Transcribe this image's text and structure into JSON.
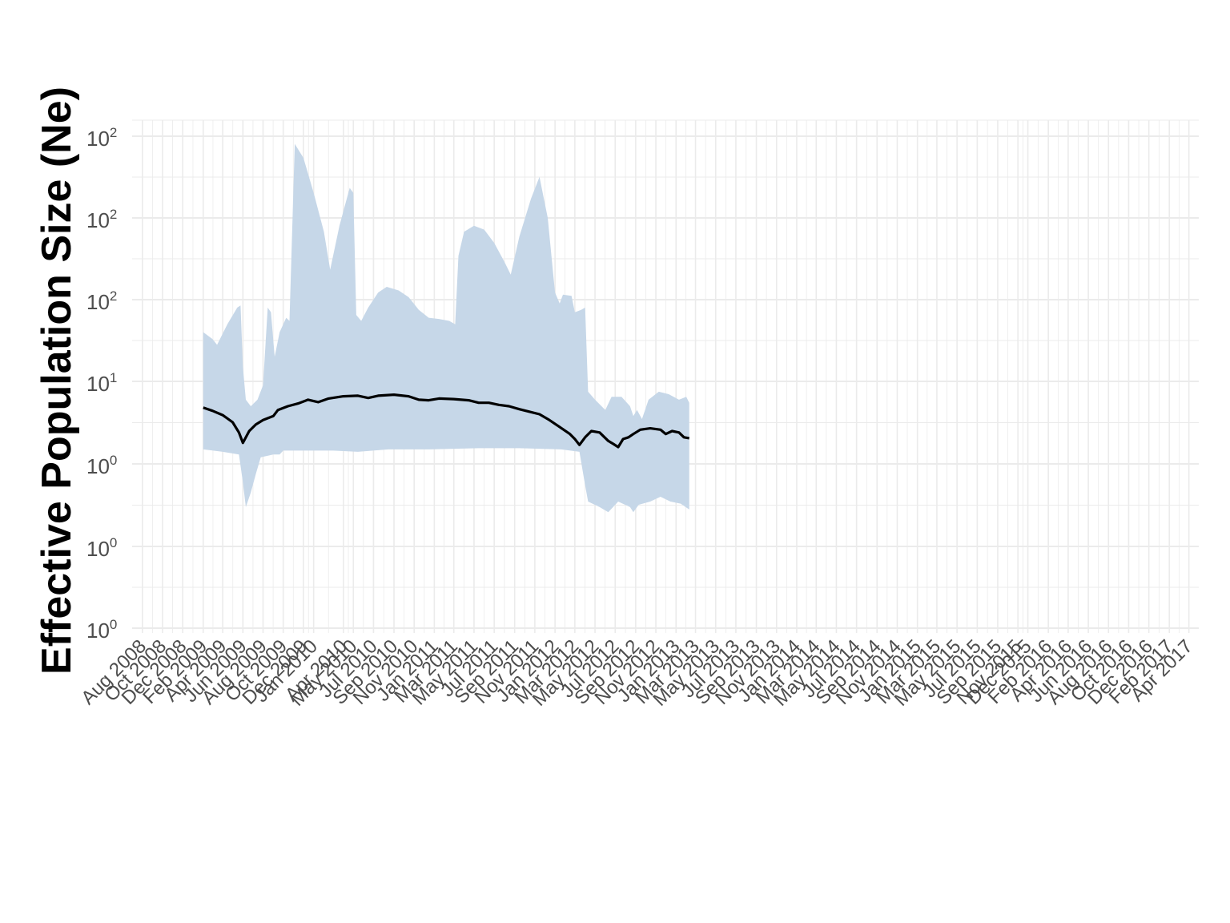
{
  "chart_data": {
    "type": "line",
    "ylabel": "Effective Population Size (Ne)",
    "xlabel": "",
    "y_scale": "log10",
    "y_ticks": [
      {
        "base": "10",
        "exp": "2"
      },
      {
        "base": "10",
        "exp": "2"
      },
      {
        "base": "10",
        "exp": "2"
      },
      {
        "base": "10",
        "exp": "1"
      },
      {
        "base": "10",
        "exp": "0"
      },
      {
        "base": "10",
        "exp": "0"
      },
      {
        "base": "10",
        "exp": "0"
      }
    ],
    "x_ticks": [
      "Aug 2008",
      "Oct 2008",
      "Dec 2008",
      "Feb 2009",
      "Apr 2009",
      "Jun 2009",
      "Aug 2009",
      "Oct 2009",
      "Dec 2009",
      "Jan 2010",
      "Apr 2010",
      "May 2010",
      "Jul 2010",
      "Sep 2010",
      "Nov 2010",
      "Jan 2011",
      "Mar 2011",
      "May 2011",
      "Jul 2011",
      "Sep 2011",
      "Nov 2011",
      "Jan 2012",
      "Mar 2012",
      "May 2012",
      "Jul 2012",
      "Sep 2012",
      "Nov 2012",
      "Jan 2013",
      "Mar 2013",
      "May 2013",
      "Jul 2013",
      "Sep 2013",
      "Nov 2013",
      "Jan 2014",
      "Mar 2014",
      "May 2014",
      "Jul 2014",
      "Sep 2014",
      "Nov 2014",
      "Jan 2015",
      "Mar 2015",
      "May 2015",
      "Jul 2015",
      "Sep 2015",
      "Nov 2015",
      "Dec 2015",
      "Feb 2016",
      "Apr 2016",
      "Jun 2016",
      "Aug 2016",
      "Oct 2016",
      "Dec 2016",
      "Feb 2017",
      "Apr 2017"
    ],
    "x_range": [
      "Jul 2008",
      "May 2017"
    ],
    "series": [
      {
        "kind": "median_line",
        "color": "#000000",
        "points": [
          [
            "2009-02-01",
            4.8
          ],
          [
            "2009-03-01",
            4.4
          ],
          [
            "2009-04-01",
            3.9
          ],
          [
            "2009-05-01",
            3.2
          ],
          [
            "2009-05-20",
            2.4
          ],
          [
            "2009-06-01",
            1.8
          ],
          [
            "2009-06-20",
            2.5
          ],
          [
            "2009-07-10",
            3.0
          ],
          [
            "2009-08-01",
            3.4
          ],
          [
            "2009-09-01",
            3.8
          ],
          [
            "2009-09-15",
            4.5
          ],
          [
            "2009-10-15",
            5.0
          ],
          [
            "2009-11-15",
            5.4
          ],
          [
            "2009-12-15",
            6.0
          ],
          [
            "2010-01-15",
            5.6
          ],
          [
            "2010-02-15",
            6.2
          ],
          [
            "2010-04-01",
            6.6
          ],
          [
            "2010-05-15",
            6.7
          ],
          [
            "2010-06-15",
            6.3
          ],
          [
            "2010-07-15",
            6.7
          ],
          [
            "2010-09-01",
            6.9
          ],
          [
            "2010-10-15",
            6.6
          ],
          [
            "2010-11-15",
            6.0
          ],
          [
            "2010-12-15",
            5.9
          ],
          [
            "2011-01-15",
            6.2
          ],
          [
            "2011-03-01",
            6.1
          ],
          [
            "2011-04-15",
            5.9
          ],
          [
            "2011-05-15",
            5.5
          ],
          [
            "2011-06-15",
            5.5
          ],
          [
            "2011-07-15",
            5.2
          ],
          [
            "2011-08-15",
            5.0
          ],
          [
            "2011-09-15",
            4.6
          ],
          [
            "2011-10-15",
            4.3
          ],
          [
            "2011-11-15",
            4.0
          ],
          [
            "2011-12-15",
            3.4
          ],
          [
            "2012-01-15",
            2.8
          ],
          [
            "2012-02-15",
            2.3
          ],
          [
            "2012-03-01",
            2.0
          ],
          [
            "2012-03-15",
            1.7
          ],
          [
            "2012-04-01",
            2.1
          ],
          [
            "2012-04-20",
            2.5
          ],
          [
            "2012-05-15",
            2.4
          ],
          [
            "2012-06-10",
            1.9
          ],
          [
            "2012-06-25",
            1.75
          ],
          [
            "2012-07-10",
            1.6
          ],
          [
            "2012-07-25",
            2.0
          ],
          [
            "2012-08-10",
            2.1
          ],
          [
            "2012-08-25",
            2.3
          ],
          [
            "2012-09-15",
            2.6
          ],
          [
            "2012-10-15",
            2.7
          ],
          [
            "2012-11-15",
            2.6
          ],
          [
            "2012-12-01",
            2.3
          ],
          [
            "2012-12-20",
            2.5
          ],
          [
            "2013-01-10",
            2.4
          ],
          [
            "2013-01-25",
            2.1
          ],
          [
            "2013-02-10",
            2.05
          ]
        ]
      },
      {
        "kind": "upper_bound",
        "color": "#c6d7e8",
        "points": [
          [
            "2009-02-01",
            40
          ],
          [
            "2009-03-01",
            33
          ],
          [
            "2009-03-15",
            28
          ],
          [
            "2009-04-15",
            50
          ],
          [
            "2009-05-15",
            80
          ],
          [
            "2009-05-25",
            85
          ],
          [
            "2009-06-01",
            15
          ],
          [
            "2009-06-10",
            6
          ],
          [
            "2009-06-25",
            5
          ],
          [
            "2009-07-15",
            6
          ],
          [
            "2009-08-01",
            9
          ],
          [
            "2009-08-15",
            80
          ],
          [
            "2009-08-25",
            70
          ],
          [
            "2009-09-05",
            20
          ],
          [
            "2009-09-20",
            40
          ],
          [
            "2009-10-10",
            60
          ],
          [
            "2009-10-20",
            55
          ],
          [
            "2009-11-05",
            30000
          ],
          [
            "2009-12-01",
            18000
          ],
          [
            "2010-01-01",
            5000
          ],
          [
            "2010-02-01",
            1200
          ],
          [
            "2010-02-20",
            300
          ],
          [
            "2010-03-20",
            1500
          ],
          [
            "2010-04-20",
            6000
          ],
          [
            "2010-05-01",
            5000
          ],
          [
            "2010-05-10",
            65
          ],
          [
            "2010-05-25",
            55
          ],
          [
            "2010-06-15",
            80
          ],
          [
            "2010-07-15",
            130
          ],
          [
            "2010-08-10",
            160
          ],
          [
            "2010-09-15",
            140
          ],
          [
            "2010-10-15",
            110
          ],
          [
            "2010-11-15",
            75
          ],
          [
            "2010-12-15",
            60
          ],
          [
            "2011-01-15",
            58
          ],
          [
            "2011-02-15",
            55
          ],
          [
            "2011-03-05",
            50
          ],
          [
            "2011-03-15",
            500
          ],
          [
            "2011-04-01",
            1200
          ],
          [
            "2011-05-01",
            1500
          ],
          [
            "2011-06-01",
            1300
          ],
          [
            "2011-07-01",
            800
          ],
          [
            "2011-08-01",
            400
          ],
          [
            "2011-08-20",
            250
          ],
          [
            "2011-09-15",
            1000
          ],
          [
            "2011-10-20",
            4000
          ],
          [
            "2011-11-15",
            9000
          ],
          [
            "2011-12-10",
            2000
          ],
          [
            "2012-01-01",
            130
          ],
          [
            "2012-01-15",
            90
          ],
          [
            "2012-01-25",
            120
          ],
          [
            "2012-02-20",
            115
          ],
          [
            "2012-03-01",
            70
          ],
          [
            "2012-03-20",
            75
          ],
          [
            "2012-04-01",
            80
          ],
          [
            "2012-04-10",
            7.5
          ],
          [
            "2012-05-01",
            6
          ],
          [
            "2012-06-01",
            4.5
          ],
          [
            "2012-06-20",
            6.5
          ],
          [
            "2012-07-20",
            6.5
          ],
          [
            "2012-08-15",
            5
          ],
          [
            "2012-08-25",
            3.8
          ],
          [
            "2012-09-05",
            4.5
          ],
          [
            "2012-09-20",
            3.5
          ],
          [
            "2012-10-10",
            6
          ],
          [
            "2012-11-10",
            7.5
          ],
          [
            "2012-12-10",
            7
          ],
          [
            "2013-01-10",
            6
          ],
          [
            "2013-02-01",
            6.5
          ],
          [
            "2013-02-10",
            5.5
          ]
        ]
      },
      {
        "kind": "lower_bound",
        "color": "#c6d7e8",
        "points": [
          [
            "2009-02-01",
            1.5
          ],
          [
            "2009-04-01",
            1.4
          ],
          [
            "2009-05-20",
            1.3
          ],
          [
            "2009-06-01",
            0.6
          ],
          [
            "2009-06-10",
            0.3
          ],
          [
            "2009-06-25",
            0.45
          ],
          [
            "2009-07-10",
            0.75
          ],
          [
            "2009-07-25",
            1.2
          ],
          [
            "2009-09-01",
            1.3
          ],
          [
            "2009-09-20",
            1.3
          ],
          [
            "2009-10-01",
            1.45
          ],
          [
            "2010-03-01",
            1.45
          ],
          [
            "2010-05-15",
            1.4
          ],
          [
            "2010-08-15",
            1.5
          ],
          [
            "2010-12-15",
            1.5
          ],
          [
            "2011-05-15",
            1.55
          ],
          [
            "2011-09-15",
            1.55
          ],
          [
            "2012-01-20",
            1.5
          ],
          [
            "2012-03-15",
            1.4
          ],
          [
            "2012-04-01",
            0.55
          ],
          [
            "2012-04-10",
            0.35
          ],
          [
            "2012-05-15",
            0.3
          ],
          [
            "2012-06-10",
            0.26
          ],
          [
            "2012-07-10",
            0.35
          ],
          [
            "2012-08-15",
            0.3
          ],
          [
            "2012-08-25",
            0.26
          ],
          [
            "2012-09-10",
            0.32
          ],
          [
            "2012-10-15",
            0.35
          ],
          [
            "2012-11-15",
            0.4
          ],
          [
            "2012-12-15",
            0.35
          ],
          [
            "2013-01-15",
            0.33
          ],
          [
            "2013-02-10",
            0.28
          ]
        ]
      }
    ],
    "grid": true,
    "legend": "none",
    "background": "#ffffff",
    "grid_color": "#ebebeb"
  }
}
